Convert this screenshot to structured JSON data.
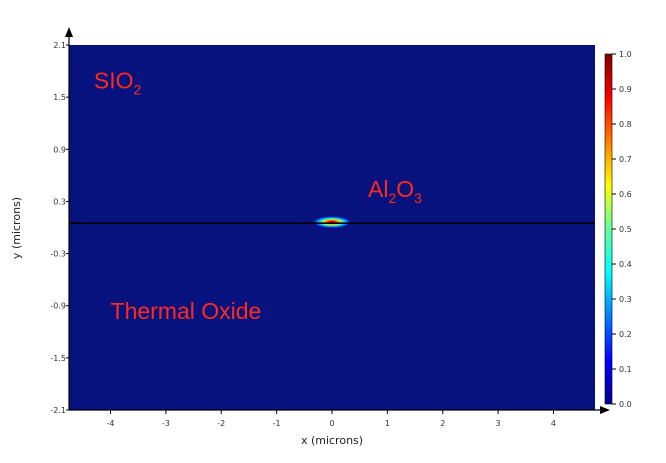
{
  "chart_data": {
    "type": "heatmap",
    "title": "",
    "xlabel": "x (microns)",
    "ylabel": "y (microns)",
    "xlim": [
      -4.75,
      4.75
    ],
    "ylim": [
      -2.1,
      2.1
    ],
    "x_ticks": [
      "-4",
      "-3",
      "-2",
      "-1",
      "0",
      "1",
      "2",
      "3",
      "4"
    ],
    "y_ticks": [
      "2.1",
      "1.5",
      "0.9",
      "0.3",
      "-0.3",
      "-0.9",
      "-1.5",
      "-2.1"
    ],
    "y_tick_values": [
      2.1,
      1.5,
      0.9,
      0.3,
      -0.3,
      -0.9,
      -1.5,
      -2.1
    ],
    "colorbar": {
      "min": 0.0,
      "max": 1.0,
      "ticks": [
        "1.0",
        "0.9",
        "0.8",
        "0.7",
        "0.6",
        "0.5",
        "0.4",
        "0.3",
        "0.2",
        "0.1",
        "0.0"
      ],
      "colormap": "jet"
    },
    "background_color": "#07127f",
    "interface_y": 0.05,
    "mode": {
      "center_x": 0.0,
      "center_y": 0.05,
      "half_width_x": 0.35,
      "half_height_y": 0.07,
      "peak": 1.0
    },
    "regions": [
      {
        "label": "SIO",
        "sub": "2",
        "x": -4.3,
        "y": 1.6
      },
      {
        "label": "Al",
        "sub": "2",
        "label2": "O",
        "sub2": "3",
        "x": 0.65,
        "y": 0.35
      },
      {
        "label": "Thermal Oxide",
        "x": -4.0,
        "y": -1.05
      }
    ]
  }
}
